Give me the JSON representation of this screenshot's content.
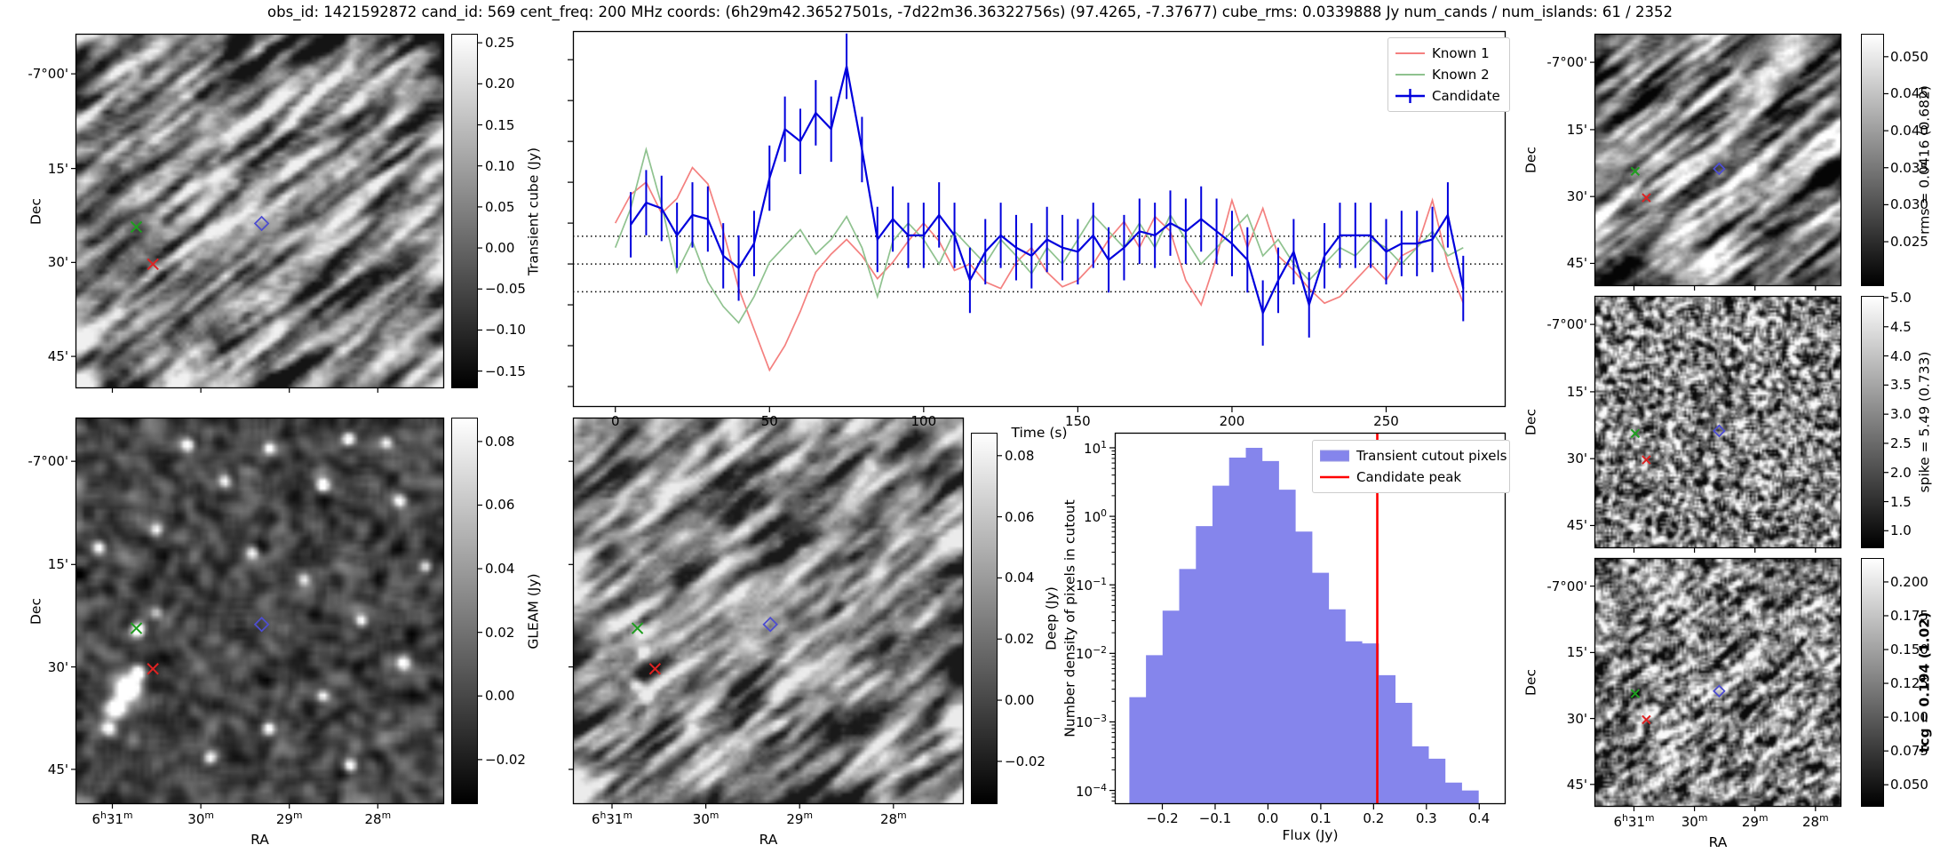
{
  "figure": {
    "title": "obs_id: 1421592872 cand_id: 569 cent_freq: 200 MHz coords: (6h29m42.36527501s, -7d22m36.36322756s) (97.4265, -7.37677) cube_rms: 0.0339888 Jy num_cands / num_islands: 61 / 2352",
    "cube_rms": 0.0339888
  },
  "axes_text": {
    "dec_label": "Dec",
    "ra_label": "RA",
    "dec_ticks": [
      "-7°00'",
      "15'",
      "30'",
      "45'"
    ],
    "ra_ticks": [
      "6h31m",
      "30m",
      "29m",
      "28m"
    ]
  },
  "cutout_panels": [
    {
      "id": "transient",
      "description": "transient cube cutout, diagonal-streak noise"
    },
    {
      "id": "gleam",
      "description": "GLEAM cutout, dark field with point sources"
    },
    {
      "id": "deep",
      "description": "deep image cutout, streak noise with sources"
    },
    {
      "id": "rms",
      "description": "rms map cutout, bright diagonal ripples"
    },
    {
      "id": "spike",
      "description": "spike map cutout, fine speckle"
    },
    {
      "id": "tcg",
      "description": "tcg map cutout, speckle with streaks"
    }
  ],
  "markers": [
    {
      "name": "green-cross-marker",
      "shape": "x",
      "color": "#1f9e1f",
      "fx": 0.165,
      "fy": 0.545
    },
    {
      "name": "red-cross-marker",
      "shape": "x",
      "color": "#dd2222",
      "fx": 0.21,
      "fy": 0.65
    },
    {
      "name": "candidate-diamond-marker",
      "shape": "diamond",
      "color": "#4d4dd0",
      "fx": 0.505,
      "fy": 0.535
    }
  ],
  "colorbars": [
    {
      "id": "transient",
      "label": "Transient cube (Jy)",
      "bold": false,
      "vmin": -0.171,
      "vmax": 0.261,
      "tick_values": [
        0.25,
        0.2,
        0.15,
        0.1,
        0.05,
        0.0,
        -0.05,
        -0.1,
        -0.15
      ],
      "tick_labels": [
        "0.25",
        "0.20",
        "0.15",
        "0.10",
        "0.05",
        "0.00",
        "−0.05",
        "−0.10",
        "−0.15"
      ]
    },
    {
      "id": "gleam",
      "label": "GLEAM (Jy)",
      "bold": false,
      "vmin": -0.034,
      "vmax": 0.0875,
      "tick_values": [
        0.08,
        0.06,
        0.04,
        0.02,
        0.0,
        -0.02
      ],
      "tick_labels": [
        "0.08",
        "0.06",
        "0.04",
        "0.02",
        "0.00",
        "−0.02"
      ]
    },
    {
      "id": "deep",
      "label": "Deep (Jy)",
      "bold": false,
      "vmin": -0.034,
      "vmax": 0.0875,
      "tick_values": [
        0.08,
        0.06,
        0.04,
        0.02,
        0.0,
        -0.02
      ],
      "tick_labels": [
        "0.08",
        "0.06",
        "0.04",
        "0.02",
        "0.00",
        "−0.02"
      ]
    },
    {
      "id": "rms",
      "label": "rms = 0.0416 (0.682)",
      "bold": false,
      "vmin": 0.019,
      "vmax": 0.0531,
      "tick_values": [
        0.05,
        0.045,
        0.04,
        0.035,
        0.03,
        0.025
      ],
      "tick_labels": [
        "0.050",
        "0.045",
        "0.040",
        "0.035",
        "0.030",
        "0.025"
      ]
    },
    {
      "id": "spike",
      "label": "spike = 5.49 (0.733)",
      "bold": false,
      "vmin": 0.7,
      "vmax": 5.03,
      "tick_values": [
        5.0,
        4.5,
        4.0,
        3.5,
        3.0,
        2.5,
        2.0,
        1.5,
        1.0
      ],
      "tick_labels": [
        "5.0",
        "4.5",
        "4.0",
        "3.5",
        "3.0",
        "2.5",
        "2.0",
        "1.5",
        "1.0"
      ]
    },
    {
      "id": "tcg",
      "label": "tcg = 0.194 (1.02)",
      "bold": true,
      "vmin": 0.0337,
      "vmax": 0.2177,
      "tick_values": [
        0.2,
        0.175,
        0.15,
        0.125,
        0.1,
        0.075,
        0.05
      ],
      "tick_labels": [
        "0.200",
        "0.175",
        "0.150",
        "0.125",
        "0.100",
        "0.075",
        "0.050"
      ]
    }
  ],
  "chart_data": [
    {
      "type": "line",
      "title": "",
      "xlabel": "Time (s)",
      "ylabel": "",
      "x_range": [
        -13.75,
        288.75
      ],
      "y_range": [
        -0.175,
        0.285
      ],
      "xticks": [
        0,
        50,
        100,
        150,
        200,
        250
      ],
      "ytick_step_unlabeled": 0.05,
      "hlines_dotted": [
        0.0339888,
        0.0,
        -0.0339888
      ],
      "legend_position": "upper right",
      "series": [
        {
          "name": "Known 1",
          "color": "#f4807f",
          "x": [
            0,
            5,
            10,
            15,
            20,
            25,
            30,
            35,
            40,
            45,
            50,
            55,
            60,
            65,
            70,
            75,
            80,
            85,
            90,
            95,
            100,
            105,
            110,
            115,
            120,
            125,
            130,
            135,
            140,
            145,
            150,
            155,
            160,
            165,
            170,
            175,
            180,
            185,
            190,
            195,
            200,
            205,
            210,
            215,
            220,
            225,
            230,
            235,
            240,
            245,
            250,
            255,
            260,
            265,
            270,
            275
          ],
          "y": [
            0.05,
            0.085,
            0.1,
            0.062,
            0.08,
            0.118,
            0.098,
            0.04,
            -0.03,
            -0.08,
            -0.13,
            -0.1,
            -0.058,
            -0.01,
            0.012,
            0.03,
            0.01,
            -0.018,
            0.002,
            0.028,
            0.05,
            0.028,
            -0.008,
            0.0,
            -0.022,
            -0.03,
            0.002,
            0.02,
            -0.01,
            -0.028,
            -0.02,
            0.0,
            0.03,
            0.052,
            0.02,
            0.058,
            0.04,
            -0.02,
            -0.05,
            0.008,
            0.078,
            0.02,
            0.068,
            0.01,
            -0.008,
            -0.03,
            -0.048,
            -0.04,
            -0.02,
            0.0,
            -0.02,
            0.01,
            0.02,
            0.078,
            0.0,
            -0.048
          ]
        },
        {
          "name": "Known 2",
          "color": "#8fc28f",
          "x": [
            0,
            5,
            10,
            15,
            20,
            25,
            30,
            35,
            40,
            45,
            50,
            55,
            60,
            65,
            70,
            75,
            80,
            85,
            90,
            95,
            100,
            105,
            110,
            115,
            120,
            125,
            130,
            135,
            140,
            145,
            150,
            155,
            160,
            165,
            170,
            175,
            180,
            185,
            190,
            195,
            200,
            205,
            210,
            215,
            220,
            225,
            230,
            235,
            240,
            245,
            250,
            255,
            260,
            265,
            270,
            275
          ],
          "y": [
            0.02,
            0.068,
            0.14,
            0.072,
            -0.01,
            0.028,
            -0.022,
            -0.052,
            -0.072,
            -0.04,
            0.002,
            0.022,
            0.042,
            0.012,
            0.03,
            0.058,
            0.02,
            -0.04,
            0.028,
            0.05,
            0.03,
            0.0,
            0.04,
            0.02,
            0.0,
            0.03,
            0.01,
            -0.012,
            0.02,
            0.0,
            0.03,
            0.06,
            0.04,
            0.02,
            0.05,
            0.02,
            0.06,
            0.03,
            0.0,
            0.02,
            0.04,
            0.06,
            0.01,
            0.03,
            0.0,
            -0.02,
            0.0,
            0.02,
            0.01,
            0.03,
            0.02,
            0.0,
            0.02,
            0.04,
            0.01,
            0.02
          ]
        },
        {
          "name": "Candidate",
          "color": "#0000dd",
          "yerr": 0.04,
          "x": [
            5,
            10,
            15,
            20,
            25,
            30,
            35,
            40,
            45,
            50,
            55,
            60,
            65,
            70,
            75,
            80,
            85,
            90,
            95,
            100,
            105,
            110,
            115,
            120,
            125,
            130,
            135,
            140,
            145,
            150,
            155,
            160,
            165,
            170,
            175,
            180,
            185,
            190,
            195,
            200,
            205,
            210,
            215,
            220,
            225,
            230,
            235,
            240,
            245,
            250,
            255,
            260,
            265,
            270,
            275
          ],
          "y": [
            0.048,
            0.075,
            0.068,
            0.035,
            0.06,
            0.055,
            0.01,
            -0.005,
            0.025,
            0.105,
            0.165,
            0.15,
            0.185,
            0.165,
            0.242,
            0.14,
            0.03,
            0.055,
            0.035,
            0.035,
            0.06,
            0.035,
            -0.02,
            0.015,
            0.035,
            0.02,
            0.01,
            0.03,
            0.02,
            0.015,
            0.035,
            0.005,
            0.02,
            0.04,
            0.035,
            0.05,
            0.04,
            0.055,
            0.04,
            0.025,
            0.005,
            -0.06,
            -0.02,
            0.015,
            -0.05,
            0.01,
            0.035,
            0.035,
            0.035,
            0.015,
            0.025,
            0.025,
            0.03,
            0.06,
            -0.03
          ]
        }
      ]
    },
    {
      "type": "histogram",
      "title": "",
      "xlabel": "Flux (Jy)",
      "ylabel": "Number density of pixels in cutout",
      "x_range": [
        -0.29,
        0.45
      ],
      "y_log_range": [
        -4.2,
        1.22
      ],
      "xticks": [
        -0.2,
        -0.1,
        0.0,
        0.1,
        0.2,
        0.3,
        0.4
      ],
      "xtick_labels": [
        "−0.2",
        "−0.1",
        "0.0",
        "0.1",
        "0.2",
        "0.3",
        "0.4"
      ],
      "ytick_exponents": [
        1,
        0,
        -1,
        -2,
        -3,
        -4
      ],
      "bin_start": -0.2625,
      "bin_width": 0.0315,
      "values": [
        0.0023,
        0.0094,
        0.042,
        0.17,
        0.72,
        2.8,
        7.2,
        10.0,
        6.4,
        2.45,
        0.6,
        0.15,
        0.044,
        0.015,
        0.014,
        0.0048,
        0.0019,
        0.00044,
        0.00029,
        0.00013,
        0.0001
      ],
      "candidate_peak": 0.207,
      "bar_color": "#8585ec",
      "peak_line_color": "#ff0000",
      "legend": [
        "Transient cutout pixels",
        "Candidate peak"
      ]
    }
  ]
}
